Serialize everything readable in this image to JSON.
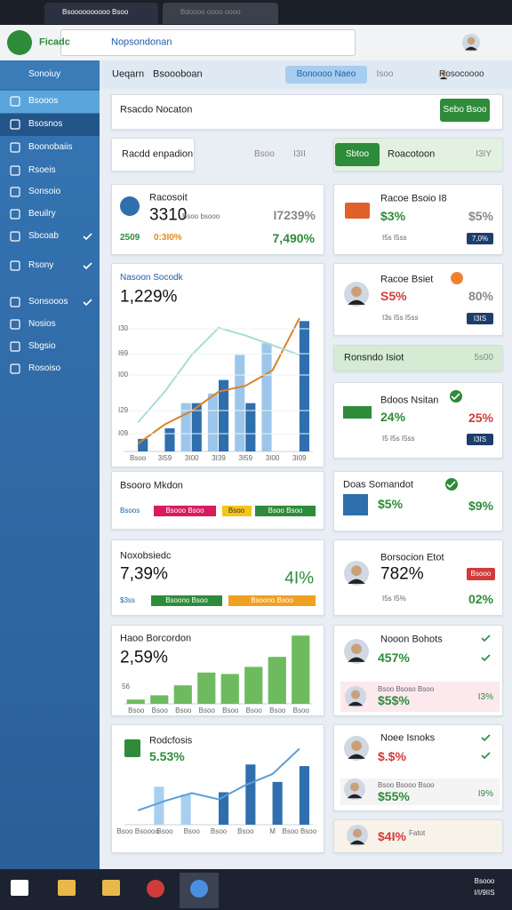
{
  "browser": {
    "tabs": [
      "Bsoooooooooo Bsoo",
      "Bdoooo oooo oooo"
    ],
    "site": "Ficadc",
    "address": "Nopsondonan"
  },
  "sidebar": {
    "title": "Sonoiuy",
    "items": [
      "Bsooos",
      "Bsosnos",
      "Boonobaiis",
      "Rsoeis",
      "Sonsoio",
      "Beuilry",
      "Sbcoab",
      "Rsony",
      "Sonsooos",
      "Nosios",
      "Sbgsio",
      "Rosoiso"
    ]
  },
  "topbar": {
    "title": "Ueqarn",
    "subtitle": "Bsoooboan",
    "button": "Bonoooo Naeo",
    "menu": "Isoo",
    "user": "Rosocoooo"
  },
  "header": {
    "title": "Rsacdo Nocaton",
    "button": "Sebo Bsoo"
  },
  "filters": {
    "tab": "Racdd enpadion",
    "search": "Bsoo",
    "count": "I3II",
    "active_tab": "Sbtoo",
    "label": "Roacotoon",
    "count_right": "I3IY"
  },
  "summary": {
    "title": "Racosoit",
    "value": "3310",
    "note": "Bsoo bsooo",
    "change": "I7239%",
    "stats": [
      "2509",
      "0:3I0%",
      "7,490%"
    ]
  },
  "trend": {
    "title": "Nasoon Socodk",
    "value": "1,229%",
    "y_labels": [
      "I30",
      "I69",
      "I00",
      "I29",
      "I09"
    ],
    "chart": {
      "type": "bar",
      "categories": [
        "Bsoo",
        "3I59",
        "3I00",
        "3I39",
        "3I59",
        "3I00",
        "3I09"
      ],
      "ylim": [
        0,
        150
      ],
      "series": [
        {
          "type": "bar",
          "color": "#9cc6ea",
          "values": [
            null,
            null,
            50,
            60,
            100,
            112,
            null
          ]
        },
        {
          "type": "bar",
          "color": "#2f6fad",
          "values": [
            13,
            24,
            50,
            74,
            50,
            null,
            135
          ]
        },
        {
          "type": "line",
          "color": "#d9822b",
          "values": [
            8,
            28,
            42,
            62,
            68,
            84,
            138
          ]
        },
        {
          "type": "line",
          "color": "#a8dcd6",
          "values": [
            30,
            62,
            100,
            128,
            120,
            110,
            100
          ]
        }
      ]
    }
  },
  "segments": {
    "title": "Bsooro Mkdon",
    "chips": [
      "Bsoos",
      "Bsooo Bsoo",
      "Bsoo",
      "Bsoo Bsoo"
    ]
  },
  "progress": {
    "title": "Noxobsiedc",
    "value": "7,39%",
    "change": "4I%",
    "chips": [
      "$3ss",
      "Bsoono Bsoo",
      "Bsoono Bsoo"
    ]
  },
  "volume": {
    "title": "Haoo Borcordon",
    "value": "2,59%",
    "y_label": "56",
    "chart": {
      "type": "bar",
      "categories": [
        "Bsoo",
        "Bsoo",
        "Bsoo",
        "Bsoo",
        "Bsoo",
        "Bsoo",
        "Bsoo",
        "Bsoo"
      ],
      "ylim": [
        0,
        100
      ],
      "series": [
        {
          "type": "bar",
          "color": "#6dbb5e",
          "values": [
            6,
            12,
            26,
            44,
            42,
            52,
            66,
            96
          ]
        }
      ]
    }
  },
  "growth": {
    "title": "Rodcfosis",
    "value": "5.53%",
    "chart": {
      "type": "bar",
      "categories": [
        "Bsoo Bsoooo",
        "Bsoo",
        "Bsoo",
        "Bsoo",
        "Bsoo",
        "M",
        "Bsoo Bsoo"
      ],
      "ylim": [
        0,
        110
      ],
      "series": [
        {
          "type": "bar",
          "color": "#a9cfee",
          "values": [
            null,
            48,
            38,
            null,
            null,
            null,
            null
          ]
        },
        {
          "type": "bar",
          "color": "#2f6fad",
          "values": [
            null,
            null,
            null,
            41,
            76,
            54,
            74
          ]
        },
        {
          "type": "line",
          "color": "#5a9fd8",
          "values": [
            18,
            30,
            40,
            32,
            50,
            64,
            96
          ]
        }
      ]
    }
  },
  "side_cards": [
    {
      "title": "Racoe Bsoio I8",
      "value": "$3%",
      "change": "$5%",
      "note": "I5s I5ss",
      "badge": "7,0%"
    },
    {
      "title": "Racoe Bsiet",
      "value": "S5%",
      "change": "80%",
      "note": "I3s I5s I5ss",
      "badge": "I3IS"
    },
    {
      "title": "Ronsndo Isiot",
      "badge": "5s00"
    },
    {
      "title": "Bdoos Nsitan",
      "value": "24%",
      "change": "25%",
      "note": "I5 I5s I5ss",
      "badge": "I3IS"
    },
    {
      "title": "Doas Somandot",
      "value": "$5%",
      "change": "$9%"
    },
    {
      "title": "Borsocion Etot",
      "value": "782%",
      "badge": "Bsooo",
      "note": "I5s I5%",
      "change": "02%"
    },
    {
      "title": "Nooon Bohots",
      "value": "457%",
      "note": "Bsoo Bsoso Bsoo",
      "sub_value": "$5$%",
      "change": "I3%"
    },
    {
      "title": "Noee Isnoks",
      "value": "$.$%",
      "note": "Bsoo Bsooo Bsoo",
      "sub_value": "$55%",
      "change": "I9%"
    },
    {
      "title": "Fatot",
      "value": "$4I%"
    }
  ],
  "taskbar": {
    "time": "Bsooo",
    "date": "I/I/9IIS"
  }
}
